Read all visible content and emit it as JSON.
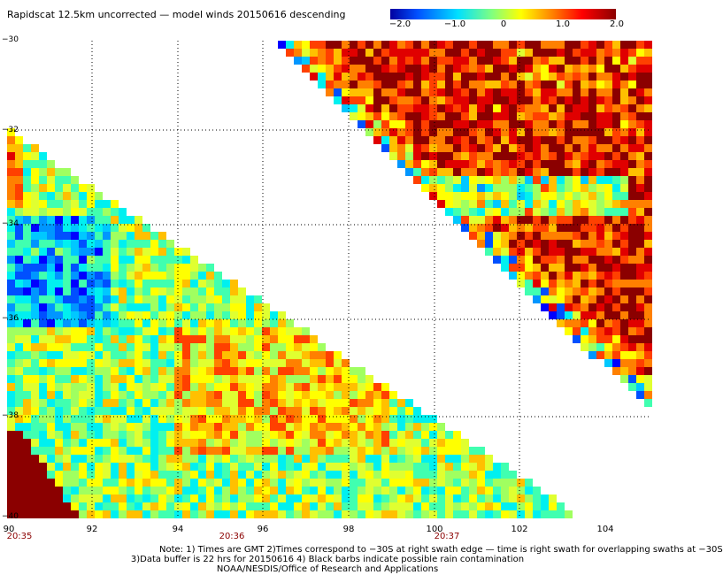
{
  "title": "Rapidscat 12.5km uncorrected — model winds 20150616 descending",
  "colorbar": {
    "ticks": [
      "−2.0",
      "−1.0",
      "0",
      "1.0",
      "2.0"
    ],
    "stops": [
      "#0000a0",
      "#0050ff",
      "#00e0ff",
      "#80ff80",
      "#ffff00",
      "#ff8000",
      "#ff0000",
      "#8b0000"
    ]
  },
  "axes": {
    "lat_labels": [
      "−30",
      "−32",
      "−34",
      "−36",
      "−38",
      "−40"
    ],
    "lon_labels": [
      "90",
      "92",
      "94",
      "96",
      "98",
      "100",
      "102",
      "104"
    ],
    "time_labels": [
      "20:35",
      "20:36",
      "20:37"
    ]
  },
  "notes": {
    "line1": "Note: 1) Times are GMT 2)Times correspond to −30S at right swath edge — time is right swath for overlapping swaths at −30S",
    "line2": "3)Data buffer is 22 hrs for 20150616 4) Black barbs indicate possible rain contamination",
    "line3": "NOAA/NESDIS/Office of Research and Applications"
  },
  "chart_data": {
    "type": "heatmap",
    "title": "Rapidscat 12.5km uncorrected — model winds 20150616 descending",
    "x_range": [
      90,
      104.5
    ],
    "y_range": [
      -40,
      -30
    ],
    "value_range": [
      -2.0,
      2.0
    ],
    "grid": true,
    "swaths": [
      {
        "region": "upper-right",
        "values_mostly": "positive (1.0 to >2.0), mixed near edges"
      },
      {
        "region": "lower-left",
        "values_mostly": "near 0 (-1.0 to 1.0), positive near -39 lat / 90 lon"
      }
    ]
  }
}
